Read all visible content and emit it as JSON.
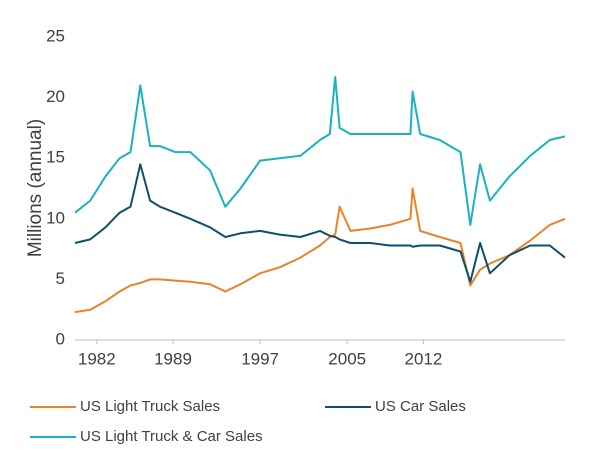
{
  "chart_data": {
    "type": "line",
    "y_label": "Millions (annual)",
    "x": [
      1980,
      1981.4,
      1982.8,
      1984.1,
      1985.1,
      1986,
      1986.9,
      1987.8,
      1989.2,
      1990.6,
      1992.4,
      1993.8,
      1995.2,
      1997,
      1998.8,
      2000.7,
      2002.5,
      2003.4,
      2003.9,
      2004.3,
      2005.3,
      2007.1,
      2008.9,
      2010.8,
      2011,
      2011.7,
      2013.5,
      2015.4,
      2016.3,
      2017.2,
      2018.1,
      2019.9,
      2021.8,
      2023.6,
      2025
    ],
    "series": [
      {
        "name": "US Light Truck Sales",
        "color": "#e8832a",
        "values": [
          2.3,
          2.5,
          3.2,
          4.0,
          4.5,
          4.7,
          5.0,
          5.0,
          4.9,
          4.8,
          4.6,
          4.0,
          4.6,
          5.5,
          6.0,
          6.8,
          7.8,
          8.5,
          8.7,
          11.0,
          9.0,
          9.2,
          9.5,
          10.0,
          12.5,
          9.0,
          8.5,
          8.0,
          4.5,
          5.8,
          6.3,
          7.0,
          8.2,
          9.5,
          10.0
        ]
      },
      {
        "name": "US Car Sales",
        "color": "#0e4f6a",
        "values": [
          8.0,
          8.3,
          9.3,
          10.5,
          11.0,
          14.5,
          11.5,
          11.0,
          10.5,
          10.0,
          9.3,
          8.5,
          8.8,
          9.0,
          8.7,
          8.5,
          9.0,
          8.6,
          8.5,
          8.3,
          8.0,
          8.0,
          7.8,
          7.8,
          7.7,
          7.8,
          7.8,
          7.3,
          4.8,
          8.0,
          5.5,
          7.0,
          7.8,
          7.8,
          6.8
        ]
      },
      {
        "name": "US Light Truck & Car Sales",
        "color": "#19b2c1",
        "values": [
          10.5,
          11.5,
          13.5,
          15.0,
          15.5,
          21.0,
          16.0,
          16.0,
          15.5,
          15.5,
          14.0,
          11.0,
          12.5,
          14.8,
          15.0,
          15.2,
          16.5,
          17.0,
          21.7,
          17.5,
          17.0,
          17.0,
          17.0,
          17.0,
          20.5,
          17.0,
          16.5,
          15.5,
          9.5,
          14.5,
          11.5,
          13.5,
          15.2,
          16.5,
          16.8
        ]
      }
    ],
    "xlim": [
      1980,
      2025
    ],
    "xticks": [
      1982,
      1989,
      1997,
      2005,
      2012
    ],
    "ylim": [
      0,
      25
    ],
    "yticks": [
      0,
      5,
      10,
      15,
      20,
      25
    ],
    "grid": false,
    "legend": "bottom"
  }
}
